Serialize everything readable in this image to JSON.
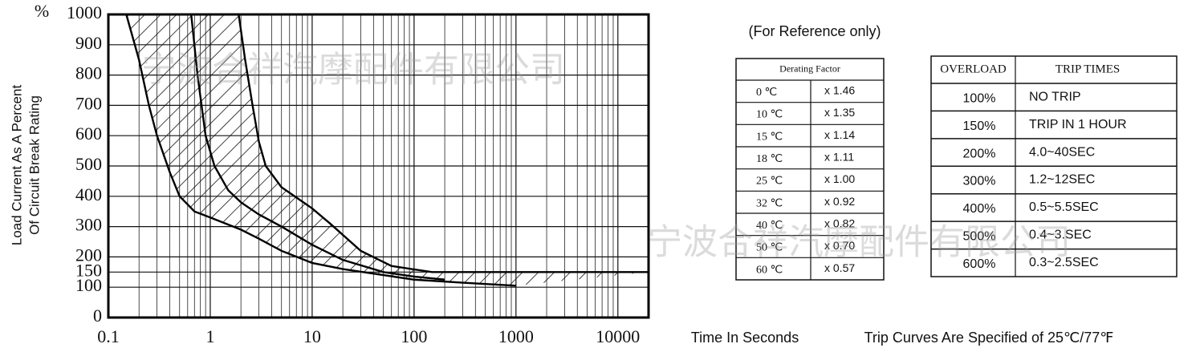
{
  "chart_data": {
    "type": "line",
    "y_unit": "%",
    "y_label": [
      "Load Current As A Percent",
      "Of Circuit Break Rating"
    ],
    "x_label": "Time In Seconds",
    "log_x": true,
    "grid": true,
    "minor_grid": true,
    "hatch": true,
    "xlim": [
      0.1,
      20000
    ],
    "ylim": [
      0,
      1000
    ],
    "xticks": [
      0.1,
      1,
      10,
      100,
      1000,
      10000
    ],
    "yticks": [
      0,
      100,
      150,
      200,
      300,
      400,
      500,
      600,
      700,
      800,
      900,
      1000
    ],
    "series": [
      {
        "color": "#000000",
        "x": [
          0.15,
          0.2,
          0.25,
          0.3,
          0.4,
          0.5,
          0.7,
          1,
          2,
          3,
          5,
          10,
          20,
          50,
          100,
          300,
          1000
        ],
        "values": [
          1000,
          850,
          700,
          600,
          480,
          400,
          350,
          330,
          290,
          260,
          220,
          180,
          160,
          140,
          125,
          115,
          105
        ]
      },
      {
        "color": "#000000",
        "x": [
          0.65,
          0.75,
          0.9,
          1.1,
          1.5,
          2,
          3,
          5,
          10,
          20,
          50,
          100,
          200
        ],
        "values": [
          1000,
          800,
          600,
          500,
          420,
          380,
          340,
          300,
          240,
          190,
          150,
          135,
          125
        ]
      },
      {
        "color": "#000000",
        "x": [
          1.9,
          2.2,
          2.6,
          3,
          3.5,
          5,
          10,
          15,
          30,
          60,
          150,
          300,
          20000
        ],
        "values": [
          1000,
          850,
          700,
          580,
          500,
          430,
          360,
          310,
          220,
          170,
          150,
          150,
          150
        ]
      }
    ]
  },
  "note": "(For Reference only)",
  "footer": "Trip Curves Are Specified of 25℃/77℉",
  "watermarks": [
    "宁波合祥汽摩配件有限公司",
    "宁波合祥汽摩配件有限公司"
  ],
  "derating_table": {
    "header": "Derating Factor",
    "rows": [
      [
        "0 ℃",
        "x 1.46"
      ],
      [
        "10 ℃",
        "x 1.35"
      ],
      [
        "15 ℃",
        "x 1.14"
      ],
      [
        "18 ℃",
        "x 1.11"
      ],
      [
        "25 ℃",
        "x 1.00"
      ],
      [
        "32 ℃",
        "x 0.92"
      ],
      [
        "40 ℃",
        "x 0.82"
      ],
      [
        "50 ℃",
        "x 0.70"
      ],
      [
        "60 ℃",
        "x 0.57"
      ]
    ]
  },
  "overload_table": {
    "header": [
      "OVERLOAD",
      "TRIP TIMES"
    ],
    "rows": [
      [
        "100%",
        "NO TRIP"
      ],
      [
        "150%",
        "TRIP IN 1 HOUR"
      ],
      [
        "200%",
        "4.0~40SEC"
      ],
      [
        "300%",
        "1.2~12SEC"
      ],
      [
        "400%",
        "0.5~5.5SEC"
      ],
      [
        "500%",
        "0.4~3.SEC"
      ],
      [
        "600%",
        "0.3~2.5SEC"
      ]
    ]
  }
}
